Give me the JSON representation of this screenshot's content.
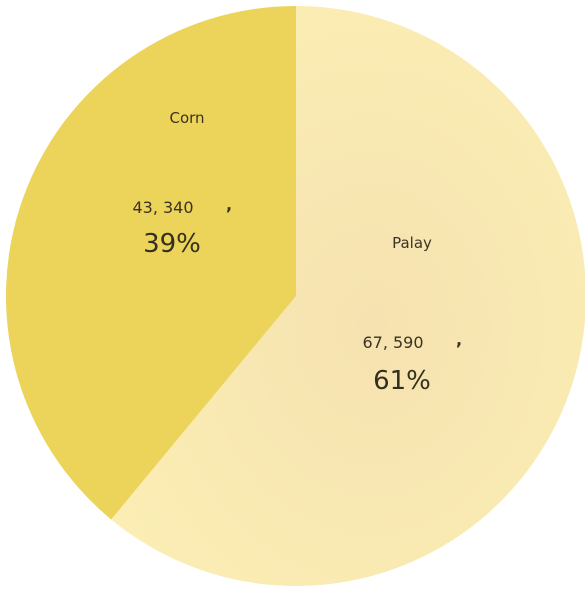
{
  "chart_data": {
    "type": "pie",
    "title": "",
    "slices": [
      {
        "label": "Corn",
        "value": "43, 340",
        "percent": "39%",
        "color": "#ecd35a"
      },
      {
        "label": "Palay",
        "value": "67, 590",
        "percent": "61%",
        "color": "#f8e6a2"
      }
    ]
  }
}
